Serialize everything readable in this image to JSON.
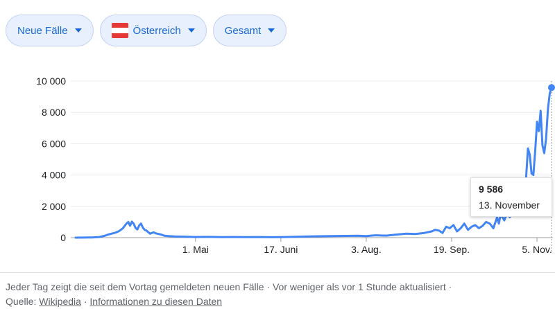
{
  "filters": {
    "metric": "Neue Fälle",
    "country": "Österreich",
    "range": "Gesamt"
  },
  "colors": {
    "accent": "#1967d2",
    "line": "#4285f4",
    "chip_bg": "#e8f0fe"
  },
  "tooltip": {
    "value": "9 586",
    "date": "13. November"
  },
  "footer": {
    "description": "Jeder Tag zeigt die seit dem Vortag gemeldeten neuen Fälle · Vor weniger als vor 1 Stunde aktualisiert  ·",
    "source_label": "Quelle:",
    "source_link": "Wikipedia",
    "separator": "·",
    "info_link": "Informationen zu diesen Daten"
  },
  "chart_data": {
    "type": "line",
    "title": "",
    "xlabel": "",
    "ylabel": "",
    "ylim": [
      0,
      10000
    ],
    "yticks": [
      0,
      2000,
      4000,
      6000,
      8000,
      10000
    ],
    "ytick_labels": [
      "0",
      "2 000",
      "4 000",
      "6 000",
      "8 000",
      "10 000"
    ],
    "xticks": [
      "2020-05-01",
      "2020-06-17",
      "2020-08-03",
      "2020-09-19",
      "2020-11-05"
    ],
    "xtick_labels": [
      "1. Mai",
      "17. Juni",
      "3. Aug.",
      "19. Sep.",
      "5. Nov."
    ],
    "grid": true,
    "highlight": {
      "x": "2020-11-13",
      "y": 9586
    },
    "series": [
      {
        "points": [
          [
            "2020-02-25",
            2
          ],
          [
            "2020-03-01",
            5
          ],
          [
            "2020-03-05",
            15
          ],
          [
            "2020-03-09",
            40
          ],
          [
            "2020-03-12",
            120
          ],
          [
            "2020-03-14",
            200
          ],
          [
            "2020-03-16",
            260
          ],
          [
            "2020-03-18",
            320
          ],
          [
            "2020-03-20",
            420
          ],
          [
            "2020-03-22",
            600
          ],
          [
            "2020-03-24",
            900
          ],
          [
            "2020-03-25",
            1000
          ],
          [
            "2020-03-26",
            760
          ],
          [
            "2020-03-27",
            1020
          ],
          [
            "2020-03-28",
            880
          ],
          [
            "2020-03-29",
            620
          ],
          [
            "2020-03-30",
            520
          ],
          [
            "2020-03-31",
            780
          ],
          [
            "2020-04-01",
            900
          ],
          [
            "2020-04-02",
            640
          ],
          [
            "2020-04-03",
            500
          ],
          [
            "2020-04-04",
            450
          ],
          [
            "2020-04-05",
            350
          ],
          [
            "2020-04-06",
            250
          ],
          [
            "2020-04-07",
            300
          ],
          [
            "2020-04-08",
            340
          ],
          [
            "2020-04-09",
            280
          ],
          [
            "2020-04-10",
            250
          ],
          [
            "2020-04-12",
            200
          ],
          [
            "2020-04-14",
            120
          ],
          [
            "2020-04-16",
            100
          ],
          [
            "2020-04-20",
            70
          ],
          [
            "2020-04-25",
            60
          ],
          [
            "2020-05-01",
            40
          ],
          [
            "2020-05-08",
            50
          ],
          [
            "2020-05-15",
            30
          ],
          [
            "2020-05-22",
            40
          ],
          [
            "2020-05-29",
            30
          ],
          [
            "2020-06-05",
            40
          ],
          [
            "2020-06-12",
            25
          ],
          [
            "2020-06-17",
            30
          ],
          [
            "2020-06-24",
            50
          ],
          [
            "2020-07-01",
            70
          ],
          [
            "2020-07-08",
            90
          ],
          [
            "2020-07-15",
            100
          ],
          [
            "2020-07-22",
            110
          ],
          [
            "2020-07-29",
            120
          ],
          [
            "2020-08-03",
            100
          ],
          [
            "2020-08-08",
            150
          ],
          [
            "2020-08-14",
            130
          ],
          [
            "2020-08-20",
            200
          ],
          [
            "2020-08-25",
            250
          ],
          [
            "2020-08-30",
            230
          ],
          [
            "2020-09-04",
            300
          ],
          [
            "2020-09-08",
            400
          ],
          [
            "2020-09-10",
            500
          ],
          [
            "2020-09-12",
            450
          ],
          [
            "2020-09-14",
            300
          ],
          [
            "2020-09-16",
            700
          ],
          [
            "2020-09-18",
            600
          ],
          [
            "2020-09-20",
            800
          ],
          [
            "2020-09-22",
            400
          ],
          [
            "2020-09-24",
            600
          ],
          [
            "2020-09-26",
            900
          ],
          [
            "2020-09-28",
            500
          ],
          [
            "2020-09-30",
            700
          ],
          [
            "2020-10-02",
            800
          ],
          [
            "2020-10-04",
            600
          ],
          [
            "2020-10-06",
            750
          ],
          [
            "2020-10-08",
            1000
          ],
          [
            "2020-10-10",
            900
          ],
          [
            "2020-10-12",
            600
          ],
          [
            "2020-10-14",
            1300
          ],
          [
            "2020-10-15",
            900
          ],
          [
            "2020-10-16",
            1500
          ],
          [
            "2020-10-18",
            1100
          ],
          [
            "2020-10-20",
            1700
          ],
          [
            "2020-10-21",
            1300
          ],
          [
            "2020-10-22",
            2300
          ],
          [
            "2020-10-23",
            2100
          ],
          [
            "2020-10-24",
            1400
          ],
          [
            "2020-10-25",
            2400
          ],
          [
            "2020-10-26",
            1800
          ],
          [
            "2020-10-27",
            2500
          ],
          [
            "2020-10-28",
            3400
          ],
          [
            "2020-10-29",
            3500
          ],
          [
            "2020-10-30",
            3800
          ],
          [
            "2020-10-31",
            5700
          ],
          [
            "2020-11-01",
            5300
          ],
          [
            "2020-11-02",
            4100
          ],
          [
            "2020-11-03",
            4000
          ],
          [
            "2020-11-04",
            5500
          ],
          [
            "2020-11-05",
            7400
          ],
          [
            "2020-11-06",
            6800
          ],
          [
            "2020-11-07",
            8100
          ],
          [
            "2020-11-08",
            5900
          ],
          [
            "2020-11-09",
            5400
          ],
          [
            "2020-11-10",
            6300
          ],
          [
            "2020-11-11",
            8200
          ],
          [
            "2020-11-12",
            9200
          ],
          [
            "2020-11-13",
            9586
          ]
        ]
      }
    ]
  }
}
